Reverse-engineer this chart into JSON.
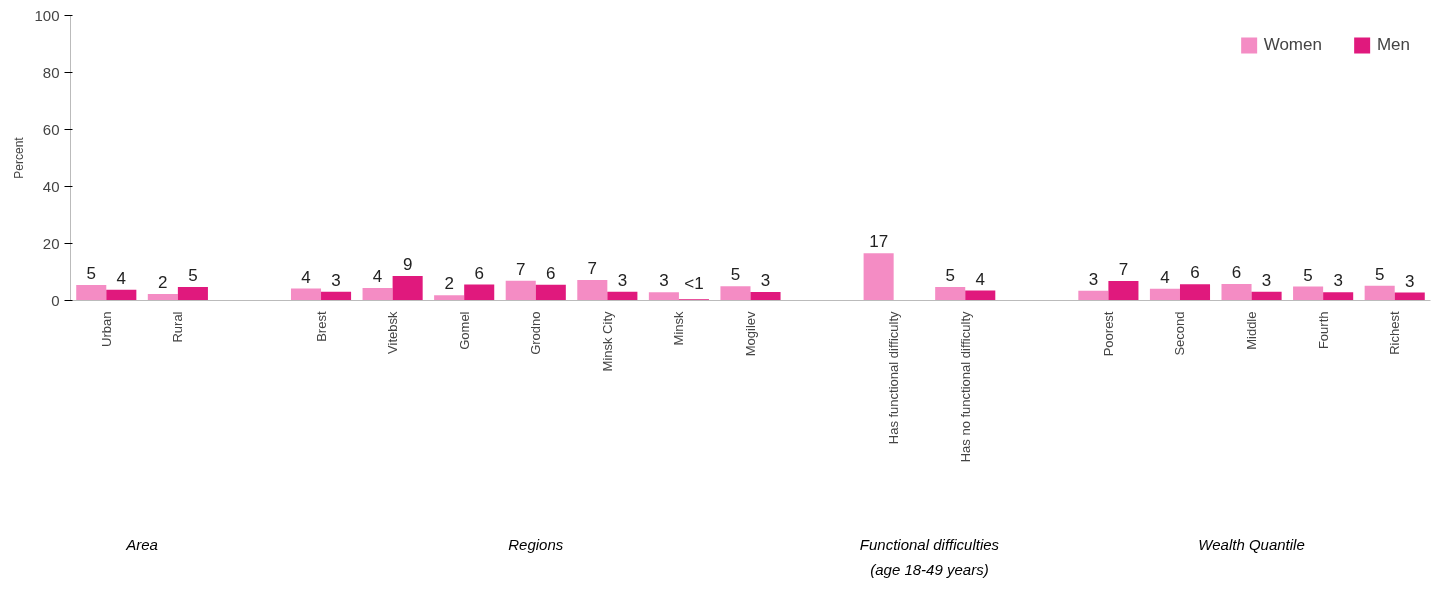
{
  "chart_data": {
    "type": "bar",
    "ylabel": "Percent",
    "ylim": [
      0,
      100
    ],
    "yticks": [
      0,
      20,
      40,
      60,
      80,
      100
    ],
    "grid": false,
    "legend": "top right",
    "categories": [
      "Urban",
      "Rural",
      null,
      "Brest",
      "Vitebsk",
      "Gomel",
      "Grodno",
      "Minsk City",
      "Minsk",
      "Mogilev",
      null,
      "Has functional difficulty",
      "Has no functional difficulty",
      null,
      "Poorest",
      "Second",
      "Middle",
      "Fourth",
      "Richest"
    ],
    "series": [
      {
        "name": "Women",
        "color": "#f48cc4",
        "values": [
          5.4,
          2.3,
          null,
          4.2,
          4.4,
          1.8,
          6.9,
          7.2,
          2.9,
          5.0,
          null,
          16.6,
          4.7,
          null,
          3.4,
          4.1,
          5.8,
          4.9,
          5.2
        ],
        "value_labels": [
          "5",
          "2",
          null,
          "4",
          "4",
          "2",
          "7",
          "7",
          "3",
          "5",
          null,
          "17",
          "5",
          null,
          "3",
          "4",
          "6",
          "5",
          "5"
        ]
      },
      {
        "name": "Men",
        "color": "#e0197d",
        "values": [
          3.8,
          4.7,
          null,
          3.1,
          8.6,
          5.6,
          5.5,
          3.1,
          0.4,
          3.0,
          null,
          null,
          3.5,
          null,
          6.8,
          5.7,
          3.1,
          2.9,
          2.8
        ],
        "value_labels": [
          "4",
          "5",
          null,
          "3",
          "9",
          "6",
          "6",
          "3",
          "<1",
          "3",
          null,
          null,
          "4",
          null,
          "7",
          "6",
          "3",
          "3",
          "3"
        ]
      }
    ],
    "annotations": [
      "Area",
      "Regions",
      "Functional difficulties\n(age 18-49 years)",
      "Wealth Quantile"
    ]
  }
}
